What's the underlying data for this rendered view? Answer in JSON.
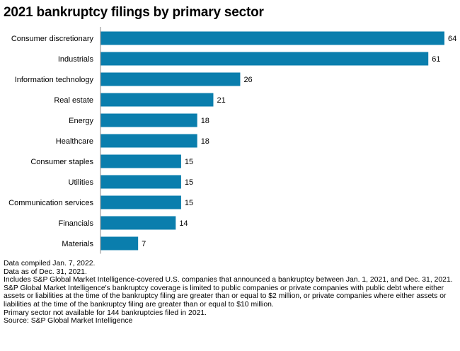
{
  "chart_data": {
    "type": "bar",
    "orientation": "horizontal",
    "title": "2021 bankruptcy filings by primary sector",
    "categories": [
      "Consumer discretionary",
      "Industrials",
      "Information technology",
      "Real estate",
      "Energy",
      "Healthcare",
      "Consumer staples",
      "Utilities",
      "Communication services",
      "Financials",
      "Materials"
    ],
    "values": [
      64,
      61,
      26,
      21,
      18,
      18,
      15,
      15,
      15,
      14,
      7
    ],
    "data_labels": true,
    "xlim": [
      0,
      64
    ],
    "grid": false,
    "legend": "none",
    "bar_color": "#0a7ead"
  },
  "notes": [
    "Data compiled Jan. 7, 2022.",
    "Data as of Dec. 31, 2021.",
    "Includes S&P Global Market Intelligence-covered U.S. companies that announced a bankruptcy between Jan. 1, 2021, and Dec. 31, 2021.",
    "S&P Global Market Intelligence's bankruptcy coverage is limited to public companies or private companies with public debt where either assets or liabilities at the time of the bankruptcy filing are greater than or equal to $2 million, or private companies where either assets or liabilities at the time of the bankruptcy filing are greater than or equal to $10 million.",
    "Primary sector not available for 144 bankruptcies filed in 2021.",
    "Source: S&P Global Market Intelligence"
  ]
}
